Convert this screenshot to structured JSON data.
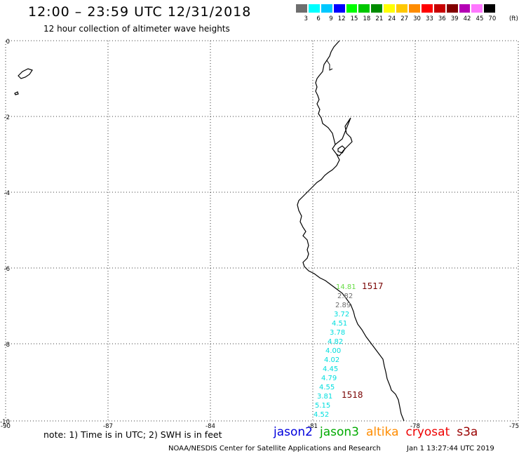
{
  "header": {
    "title": "12:00 – 23:59 UTC 12/31/2018",
    "subtitle": "12 hour collection of altimeter wave heights"
  },
  "legend": {
    "unit": "(ft)",
    "bins": [
      {
        "label": "3",
        "color": "#6e6e6e"
      },
      {
        "label": "6",
        "color": "#00ffff"
      },
      {
        "label": "9",
        "color": "#00c8ff"
      },
      {
        "label": "12",
        "color": "#0000ff"
      },
      {
        "label": "15",
        "color": "#00ff00"
      },
      {
        "label": "18",
        "color": "#00c800"
      },
      {
        "label": "21",
        "color": "#008c00"
      },
      {
        "label": "24",
        "color": "#ffff00"
      },
      {
        "label": "27",
        "color": "#ffc800"
      },
      {
        "label": "30",
        "color": "#ff8c00"
      },
      {
        "label": "33",
        "color": "#ff0000"
      },
      {
        "label": "36",
        "color": "#c80000"
      },
      {
        "label": "39",
        "color": "#820000"
      },
      {
        "label": "42",
        "color": "#b400b4"
      },
      {
        "label": "45",
        "color": "#ff78ff"
      },
      {
        "label": "70",
        "color": "#000000"
      }
    ]
  },
  "map": {
    "lat_labels": [
      "0",
      "-2",
      "-4",
      "-6",
      "-8",
      "-10"
    ],
    "lon_labels": [
      "-90",
      "-87",
      "-84",
      "-81",
      "-78",
      "-75"
    ],
    "track_values": [
      {
        "text": "14.81",
        "color": "#66dd44"
      },
      {
        "text": "2.82",
        "color": "#6e6e6e"
      },
      {
        "text": "2.89",
        "color": "#6e6e6e"
      },
      {
        "text": "3.72",
        "color": "#00dede"
      },
      {
        "text": "4.51",
        "color": "#00dede"
      },
      {
        "text": "3.78",
        "color": "#00dede"
      },
      {
        "text": "4.82",
        "color": "#00dede"
      },
      {
        "text": "4.00",
        "color": "#00dede"
      },
      {
        "text": "4.02",
        "color": "#00dede"
      },
      {
        "text": "4.45",
        "color": "#00dede"
      },
      {
        "text": "4.79",
        "color": "#00dede"
      },
      {
        "text": "4.55",
        "color": "#00dede"
      },
      {
        "text": "3.81",
        "color": "#00dede"
      },
      {
        "text": "5.15",
        "color": "#00dede"
      },
      {
        "text": "4.52",
        "color": "#00dede"
      }
    ],
    "pass_times": [
      {
        "text": "1517",
        "color": "#780000"
      },
      {
        "text": "1518",
        "color": "#780000"
      }
    ]
  },
  "footer": {
    "note": "note:  1) Time is in UTC;  2) SWH is in feet",
    "satellites": [
      {
        "name": "jason2",
        "color": "#0000dd"
      },
      {
        "name": "jason3",
        "color": "#00aa00"
      },
      {
        "name": "altika",
        "color": "#ff8c00"
      },
      {
        "name": "cryosat",
        "color": "#ee0000"
      },
      {
        "name": "s3a",
        "color": "#990000"
      }
    ],
    "credit": "NOAA/NESDIS Center for Satellite Applications and Research",
    "timestamp": "Jan  1 13:27:44 UTC 2019"
  }
}
